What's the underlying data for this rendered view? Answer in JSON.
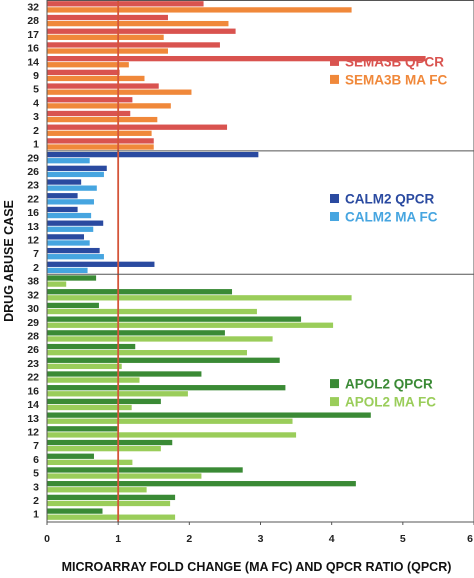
{
  "chart_data": {
    "type": "bar",
    "orientation": "horizontal",
    "xlabel": "MICROARRAY FOLD CHANGE (MA FC) AND QPCR RATIO (QPCR)",
    "ylabel": "DRUG ABUSE CASE",
    "xlim": [
      0,
      6
    ],
    "xticks": [
      "0",
      "1",
      "2",
      "3",
      "4",
      "5",
      "6"
    ],
    "reference_line": 1,
    "reference_line_color": "#d4553a",
    "panels": [
      {
        "gene": "SEMA3B",
        "cases": [
          "32",
          "28",
          "17",
          "16",
          "14",
          "9",
          "5",
          "4",
          "3",
          "2",
          "1"
        ],
        "series": [
          {
            "name": "SEMA3B QPCR",
            "color": "#d9534f",
            "values": [
              2.2,
              1.7,
              2.65,
              2.43,
              5.32,
              1.02,
              1.57,
              1.2,
              1.17,
              2.53,
              1.5
            ]
          },
          {
            "name": "SEMA3B MA FC",
            "color": "#f0883a",
            "values": [
              4.28,
              2.55,
              1.64,
              1.7,
              1.15,
              1.37,
              2.03,
              1.74,
              1.55,
              1.47,
              1.5
            ]
          }
        ]
      },
      {
        "gene": "CALM2",
        "cases": [
          "29",
          "26",
          "23",
          "22",
          "16",
          "13",
          "12",
          "7",
          "2"
        ],
        "series": [
          {
            "name": "CALM2 QPCR",
            "color": "#2a4aa0",
            "values": [
              2.97,
              0.84,
              0.48,
              0.43,
              0.43,
              0.79,
              0.52,
              0.74,
              1.51
            ]
          },
          {
            "name": "CALM2 MA FC",
            "color": "#46a5e0",
            "values": [
              0.6,
              0.8,
              0.7,
              0.66,
              0.62,
              0.65,
              0.6,
              0.8,
              0.57
            ]
          }
        ]
      },
      {
        "gene": "APOL2",
        "cases": [
          "38",
          "32",
          "30",
          "29",
          "28",
          "26",
          "23",
          "22",
          "16",
          "14",
          "13",
          "12",
          "7",
          "6",
          "5",
          "3",
          "2",
          "1"
        ],
        "series": [
          {
            "name": "APOL2 QPCR",
            "color": "#3a8a35",
            "values": [
              0.69,
              2.6,
              0.73,
              3.57,
              2.5,
              1.24,
              3.27,
              2.17,
              3.35,
              1.6,
              4.55,
              0.99,
              1.76,
              0.66,
              2.75,
              4.34,
              1.8,
              0.78
            ]
          },
          {
            "name": "APOL2 MA FC",
            "color": "#9acd5a",
            "values": [
              0.27,
              4.28,
              2.95,
              4.02,
              3.17,
              2.81,
              1.05,
              1.3,
              1.98,
              1.19,
              3.45,
              3.5,
              1.6,
              1.2,
              2.17,
              1.4,
              1.73,
              1.8
            ]
          }
        ]
      }
    ]
  }
}
